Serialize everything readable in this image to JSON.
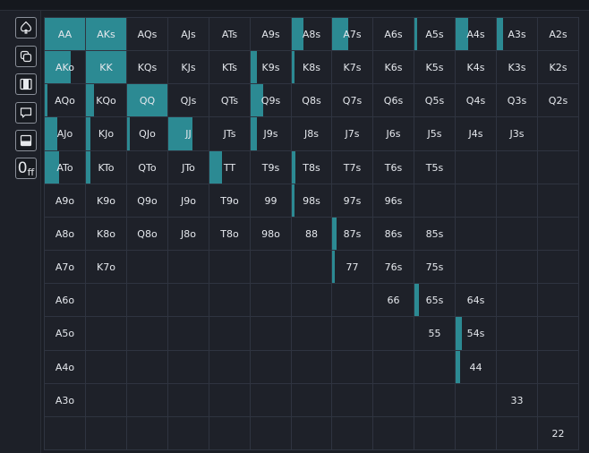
{
  "toolbar": {
    "tools": [
      {
        "icon": "spade-icon"
      },
      {
        "icon": "copy-icon"
      },
      {
        "icon": "range-icon"
      },
      {
        "icon": "comment-icon"
      },
      {
        "icon": "minimize-icon"
      },
      {
        "icon": "off-icon",
        "label_big": "0",
        "label_small": "ff"
      }
    ]
  },
  "colors": {
    "accent": "#2c8a93",
    "cell_bg": "#1e2129",
    "grid_line": "#2f3440",
    "text": "#e4e7ec"
  },
  "hand_grid": {
    "rows": [
      {
        "cells": [
          {
            "label": "AA",
            "freq": 1.0
          },
          {
            "label": "AKs",
            "freq": 1.0
          },
          {
            "label": "AQs",
            "freq": 0
          },
          {
            "label": "AJs",
            "freq": 0
          },
          {
            "label": "ATs",
            "freq": 0
          },
          {
            "label": "A9s",
            "freq": 0
          },
          {
            "label": "A8s",
            "freq": 0.3
          },
          {
            "label": "A7s",
            "freq": 0.4
          },
          {
            "label": "A6s",
            "freq": 0
          },
          {
            "label": "A5s",
            "freq": 0.06
          },
          {
            "label": "A4s",
            "freq": 0.3
          },
          {
            "label": "A3s",
            "freq": 0.16
          },
          {
            "label": "A2s",
            "freq": 0
          }
        ]
      },
      {
        "cells": [
          {
            "label": "AKo",
            "freq": 0.65
          },
          {
            "label": "KK",
            "freq": 1.0
          },
          {
            "label": "KQs",
            "freq": 0
          },
          {
            "label": "KJs",
            "freq": 0
          },
          {
            "label": "KTs",
            "freq": 0
          },
          {
            "label": "K9s",
            "freq": 0.16
          },
          {
            "label": "K8s",
            "freq": 0.06
          },
          {
            "label": "K7s",
            "freq": 0
          },
          {
            "label": "K6s",
            "freq": 0
          },
          {
            "label": "K5s",
            "freq": 0
          },
          {
            "label": "K4s",
            "freq": 0
          },
          {
            "label": "K3s",
            "freq": 0
          },
          {
            "label": "K2s",
            "freq": 0
          }
        ]
      },
      {
        "cells": [
          {
            "label": "AQo",
            "freq": 0.06
          },
          {
            "label": "KQo",
            "freq": 0.2
          },
          {
            "label": "QQ",
            "freq": 1.0
          },
          {
            "label": "QJs",
            "freq": 0
          },
          {
            "label": "QTs",
            "freq": 0
          },
          {
            "label": "Q9s",
            "freq": 0.3
          },
          {
            "label": "Q8s",
            "freq": 0
          },
          {
            "label": "Q7s",
            "freq": 0
          },
          {
            "label": "Q6s",
            "freq": 0
          },
          {
            "label": "Q5s",
            "freq": 0
          },
          {
            "label": "Q4s",
            "freq": 0
          },
          {
            "label": "Q3s",
            "freq": 0
          },
          {
            "label": "Q2s",
            "freq": 0
          }
        ]
      },
      {
        "cells": [
          {
            "label": "AJo",
            "freq": 0.3
          },
          {
            "label": "KJo",
            "freq": 0.1
          },
          {
            "label": "QJo",
            "freq": 0.06
          },
          {
            "label": "JJ",
            "freq": 0.6
          },
          {
            "label": "JTs",
            "freq": 0
          },
          {
            "label": "J9s",
            "freq": 0.16
          },
          {
            "label": "J8s",
            "freq": 0
          },
          {
            "label": "J7s",
            "freq": 0
          },
          {
            "label": "J6s",
            "freq": 0
          },
          {
            "label": "J5s",
            "freq": 0
          },
          {
            "label": "J4s",
            "freq": 0
          },
          {
            "label": "J3s",
            "freq": 0
          },
          {
            "label": "",
            "freq": 0
          }
        ]
      },
      {
        "cells": [
          {
            "label": "ATo",
            "freq": 0.35
          },
          {
            "label": "KTo",
            "freq": 0.1
          },
          {
            "label": "QTo",
            "freq": 0
          },
          {
            "label": "JTo",
            "freq": 0
          },
          {
            "label": "TT",
            "freq": 0.3
          },
          {
            "label": "T9s",
            "freq": 0
          },
          {
            "label": "T8s",
            "freq": 0.1
          },
          {
            "label": "T7s",
            "freq": 0
          },
          {
            "label": "T6s",
            "freq": 0
          },
          {
            "label": "T5s",
            "freq": 0
          },
          {
            "label": "",
            "freq": 0
          },
          {
            "label": "",
            "freq": 0
          },
          {
            "label": "",
            "freq": 0
          }
        ]
      },
      {
        "cells": [
          {
            "label": "A9o",
            "freq": 0
          },
          {
            "label": "K9o",
            "freq": 0
          },
          {
            "label": "Q9o",
            "freq": 0
          },
          {
            "label": "J9o",
            "freq": 0
          },
          {
            "label": "T9o",
            "freq": 0
          },
          {
            "label": "99",
            "freq": 0
          },
          {
            "label": "98s",
            "freq": 0.06
          },
          {
            "label": "97s",
            "freq": 0
          },
          {
            "label": "96s",
            "freq": 0
          },
          {
            "label": "",
            "freq": 0
          },
          {
            "label": "",
            "freq": 0
          },
          {
            "label": "",
            "freq": 0
          },
          {
            "label": "",
            "freq": 0
          }
        ]
      },
      {
        "cells": [
          {
            "label": "A8o",
            "freq": 0
          },
          {
            "label": "K8o",
            "freq": 0
          },
          {
            "label": "Q8o",
            "freq": 0
          },
          {
            "label": "J8o",
            "freq": 0
          },
          {
            "label": "T8o",
            "freq": 0
          },
          {
            "label": "98o",
            "freq": 0
          },
          {
            "label": "88",
            "freq": 0
          },
          {
            "label": "87s",
            "freq": 0.1
          },
          {
            "label": "86s",
            "freq": 0
          },
          {
            "label": "85s",
            "freq": 0
          },
          {
            "label": "",
            "freq": 0
          },
          {
            "label": "",
            "freq": 0
          },
          {
            "label": "",
            "freq": 0
          }
        ]
      },
      {
        "cells": [
          {
            "label": "A7o",
            "freq": 0
          },
          {
            "label": "K7o",
            "freq": 0
          },
          {
            "label": "",
            "freq": 0
          },
          {
            "label": "",
            "freq": 0
          },
          {
            "label": "",
            "freq": 0
          },
          {
            "label": "",
            "freq": 0
          },
          {
            "label": "",
            "freq": 0
          },
          {
            "label": "77",
            "freq": 0.06
          },
          {
            "label": "76s",
            "freq": 0
          },
          {
            "label": "75s",
            "freq": 0
          },
          {
            "label": "",
            "freq": 0
          },
          {
            "label": "",
            "freq": 0
          },
          {
            "label": "",
            "freq": 0
          }
        ]
      },
      {
        "cells": [
          {
            "label": "A6o",
            "freq": 0
          },
          {
            "label": "",
            "freq": 0
          },
          {
            "label": "",
            "freq": 0
          },
          {
            "label": "",
            "freq": 0
          },
          {
            "label": "",
            "freq": 0
          },
          {
            "label": "",
            "freq": 0
          },
          {
            "label": "",
            "freq": 0
          },
          {
            "label": "",
            "freq": 0
          },
          {
            "label": "66",
            "freq": 0
          },
          {
            "label": "65s",
            "freq": 0.1
          },
          {
            "label": "64s",
            "freq": 0
          },
          {
            "label": "",
            "freq": 0
          },
          {
            "label": "",
            "freq": 0
          }
        ]
      },
      {
        "cells": [
          {
            "label": "A5o",
            "freq": 0
          },
          {
            "label": "",
            "freq": 0
          },
          {
            "label": "",
            "freq": 0
          },
          {
            "label": "",
            "freq": 0
          },
          {
            "label": "",
            "freq": 0
          },
          {
            "label": "",
            "freq": 0
          },
          {
            "label": "",
            "freq": 0
          },
          {
            "label": "",
            "freq": 0
          },
          {
            "label": "",
            "freq": 0
          },
          {
            "label": "55",
            "freq": 0
          },
          {
            "label": "54s",
            "freq": 0.16
          },
          {
            "label": "",
            "freq": 0
          },
          {
            "label": "",
            "freq": 0
          }
        ]
      },
      {
        "cells": [
          {
            "label": "A4o",
            "freq": 0
          },
          {
            "label": "",
            "freq": 0
          },
          {
            "label": "",
            "freq": 0
          },
          {
            "label": "",
            "freq": 0
          },
          {
            "label": "",
            "freq": 0
          },
          {
            "label": "",
            "freq": 0
          },
          {
            "label": "",
            "freq": 0
          },
          {
            "label": "",
            "freq": 0
          },
          {
            "label": "",
            "freq": 0
          },
          {
            "label": "",
            "freq": 0
          },
          {
            "label": "44",
            "freq": 0.1
          },
          {
            "label": "",
            "freq": 0
          },
          {
            "label": "",
            "freq": 0
          }
        ]
      },
      {
        "cells": [
          {
            "label": "A3o",
            "freq": 0
          },
          {
            "label": "",
            "freq": 0
          },
          {
            "label": "",
            "freq": 0
          },
          {
            "label": "",
            "freq": 0
          },
          {
            "label": "",
            "freq": 0
          },
          {
            "label": "",
            "freq": 0
          },
          {
            "label": "",
            "freq": 0
          },
          {
            "label": "",
            "freq": 0
          },
          {
            "label": "",
            "freq": 0
          },
          {
            "label": "",
            "freq": 0
          },
          {
            "label": "",
            "freq": 0
          },
          {
            "label": "33",
            "freq": 0
          },
          {
            "label": "",
            "freq": 0
          }
        ]
      },
      {
        "cells": [
          {
            "label": "",
            "freq": 0
          },
          {
            "label": "",
            "freq": 0
          },
          {
            "label": "",
            "freq": 0
          },
          {
            "label": "",
            "freq": 0
          },
          {
            "label": "",
            "freq": 0
          },
          {
            "label": "",
            "freq": 0
          },
          {
            "label": "",
            "freq": 0
          },
          {
            "label": "",
            "freq": 0
          },
          {
            "label": "",
            "freq": 0
          },
          {
            "label": "",
            "freq": 0
          },
          {
            "label": "",
            "freq": 0
          },
          {
            "label": "",
            "freq": 0
          },
          {
            "label": "22",
            "freq": 0
          }
        ]
      }
    ]
  }
}
